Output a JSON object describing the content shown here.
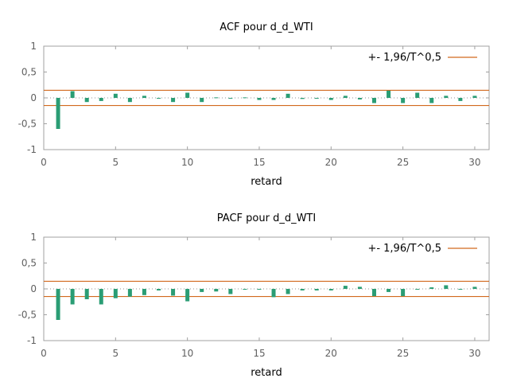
{
  "chart_data": [
    {
      "type": "bar",
      "title": "ACF pour d_d_WTI",
      "xlabel": "retard",
      "ylabel": "",
      "xlim": [
        0,
        31
      ],
      "ylim": [
        -1,
        1
      ],
      "xticks": [
        0,
        5,
        10,
        15,
        20,
        25,
        30
      ],
      "yticks": [
        1,
        0.5,
        0,
        -0.5,
        -1
      ],
      "yticklabels": [
        "1",
        "0,5",
        "0",
        "-0,5",
        "-1"
      ],
      "lags": [
        1,
        2,
        3,
        4,
        5,
        6,
        7,
        8,
        9,
        10,
        11,
        12,
        13,
        14,
        15,
        16,
        17,
        18,
        19,
        20,
        21,
        22,
        23,
        24,
        25,
        26,
        27,
        28,
        29,
        30
      ],
      "values": [
        -0.6,
        0.13,
        -0.08,
        -0.06,
        0.08,
        -0.08,
        0.04,
        0.0,
        -0.08,
        0.1,
        -0.08,
        0.01,
        -0.01,
        0.01,
        -0.04,
        -0.04,
        0.08,
        -0.02,
        -0.01,
        -0.04,
        0.04,
        -0.03,
        -0.1,
        0.14,
        -0.1,
        0.1,
        -0.1,
        0.04,
        -0.06,
        0.04
      ],
      "bound": 0.147,
      "legend": "+- 1,96/T^0,5",
      "bar_color": "#2a9d74",
      "bound_color": "#d2691e"
    },
    {
      "type": "bar",
      "title": "PACF pour d_d_WTI",
      "xlabel": "retard",
      "ylabel": "",
      "xlim": [
        0,
        31
      ],
      "ylim": [
        -1,
        1
      ],
      "xticks": [
        0,
        5,
        10,
        15,
        20,
        25,
        30
      ],
      "yticks": [
        1,
        0.5,
        0,
        -0.5,
        -1
      ],
      "yticklabels": [
        "1",
        "0,5",
        "0",
        "-0,5",
        "-1"
      ],
      "lags": [
        1,
        2,
        3,
        4,
        5,
        6,
        7,
        8,
        9,
        10,
        11,
        12,
        13,
        14,
        15,
        16,
        17,
        18,
        19,
        20,
        21,
        22,
        23,
        24,
        25,
        26,
        27,
        28,
        29,
        30
      ],
      "values": [
        -0.6,
        -0.3,
        -0.2,
        -0.3,
        -0.18,
        -0.15,
        -0.12,
        -0.03,
        -0.13,
        -0.24,
        -0.06,
        -0.05,
        -0.1,
        0.0,
        -0.01,
        -0.16,
        -0.1,
        -0.03,
        -0.03,
        -0.03,
        0.06,
        0.04,
        -0.14,
        -0.06,
        -0.14,
        0.0,
        0.03,
        0.07,
        -0.01,
        0.04
      ],
      "bound": 0.147,
      "legend": "+- 1,96/T^0,5",
      "bar_color": "#2a9d74",
      "bound_color": "#d2691e"
    }
  ]
}
